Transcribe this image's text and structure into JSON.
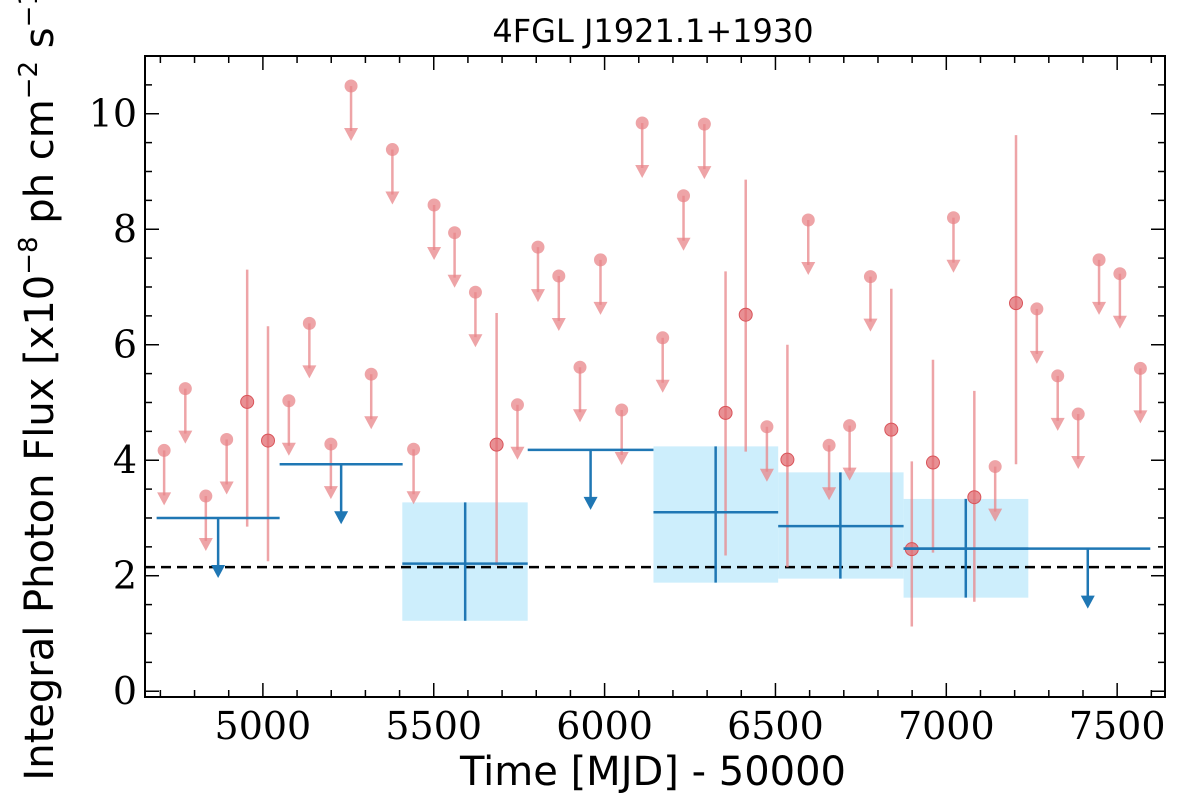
{
  "chart_data": {
    "type": "scatter",
    "title": "4FGL J1921.1+1930",
    "xlabel": "Time [MJD] - 50000",
    "ylabel": "Integral Photon Flux [x10",
    "ylabel_exp1": "−8",
    "ylabel_mid": " ph cm",
    "ylabel_exp2": "−2",
    "ylabel_mid2": " s",
    "ylabel_exp3": "−1",
    "ylabel_end": "]",
    "xlim": [
      4655,
      7640
    ],
    "ylim": [
      -0.1,
      11.0
    ],
    "x_ticks": [
      5000,
      5500,
      6000,
      6500,
      7000,
      7500
    ],
    "x_tick_labels": [
      "5000",
      "5500",
      "6000",
      "6500",
      "7000",
      "7500"
    ],
    "y_ticks": [
      0,
      2,
      4,
      6,
      8,
      10
    ],
    "y_tick_labels": [
      "0",
      "2",
      "4",
      "6",
      "8",
      "10"
    ],
    "baseline_flux": 2.15,
    "colors": {
      "short_bins": "#e8868a",
      "long_bins": "#1f77b4",
      "band_fill": "#cdeefc",
      "baseline": "#000000"
    },
    "short_bin_upper_limits": [
      {
        "x": 4711,
        "y": 4.17
      },
      {
        "x": 4773,
        "y": 5.24
      },
      {
        "x": 4833,
        "y": 3.38
      },
      {
        "x": 4894,
        "y": 4.36
      },
      {
        "x": 5076,
        "y": 5.03
      },
      {
        "x": 5136,
        "y": 6.37
      },
      {
        "x": 5199,
        "y": 4.28
      },
      {
        "x": 5258,
        "y": 10.48
      },
      {
        "x": 5317,
        "y": 5.49
      },
      {
        "x": 5379,
        "y": 9.38
      },
      {
        "x": 5441,
        "y": 4.19
      },
      {
        "x": 5501,
        "y": 8.42
      },
      {
        "x": 5561,
        "y": 7.94
      },
      {
        "x": 5622,
        "y": 6.91
      },
      {
        "x": 5745,
        "y": 4.96
      },
      {
        "x": 5805,
        "y": 7.69
      },
      {
        "x": 5866,
        "y": 7.19
      },
      {
        "x": 5928,
        "y": 5.61
      },
      {
        "x": 5988,
        "y": 7.47
      },
      {
        "x": 6050,
        "y": 4.87
      },
      {
        "x": 6110,
        "y": 9.84
      },
      {
        "x": 6170,
        "y": 6.12
      },
      {
        "x": 6231,
        "y": 8.58
      },
      {
        "x": 6292,
        "y": 9.82
      },
      {
        "x": 6475,
        "y": 4.58
      },
      {
        "x": 6596,
        "y": 8.16
      },
      {
        "x": 6657,
        "y": 4.26
      },
      {
        "x": 6717,
        "y": 4.6
      },
      {
        "x": 6778,
        "y": 7.18
      },
      {
        "x": 7021,
        "y": 8.2
      },
      {
        "x": 7143,
        "y": 3.89
      },
      {
        "x": 7265,
        "y": 6.62
      },
      {
        "x": 7326,
        "y": 5.46
      },
      {
        "x": 7386,
        "y": 4.8
      },
      {
        "x": 7447,
        "y": 7.47
      },
      {
        "x": 7508,
        "y": 7.23
      },
      {
        "x": 7568,
        "y": 5.59
      }
    ],
    "short_bin_detections": [
      {
        "x": 4954,
        "y": 5.01,
        "ylow": 2.85,
        "yhigh": 7.3
      },
      {
        "x": 5015,
        "y": 4.34,
        "ylow": 2.25,
        "yhigh": 6.32
      },
      {
        "x": 5684,
        "y": 4.27,
        "ylow": 2.18,
        "yhigh": 6.55
      },
      {
        "x": 6354,
        "y": 4.82,
        "ylow": 2.35,
        "yhigh": 7.27
      },
      {
        "x": 6413,
        "y": 6.52,
        "ylow": 4.15,
        "yhigh": 8.86
      },
      {
        "x": 6535,
        "y": 4.01,
        "ylow": 2.15,
        "yhigh": 6.0
      },
      {
        "x": 6839,
        "y": 4.53,
        "ylow": 2.15,
        "yhigh": 6.97
      },
      {
        "x": 6899,
        "y": 2.46,
        "ylow": 1.12,
        "yhigh": 3.98
      },
      {
        "x": 6961,
        "y": 3.96,
        "ylow": 2.4,
        "yhigh": 5.74
      },
      {
        "x": 7082,
        "y": 3.36,
        "ylow": 1.55,
        "yhigh": 5.2
      },
      {
        "x": 7204,
        "y": 6.72,
        "ylow": 3.93,
        "yhigh": 9.63
      }
    ],
    "long_bin_upper_limits": [
      {
        "x0": 4689,
        "x1": 5049,
        "y": 3.0,
        "x_arrow": 4869
      },
      {
        "x0": 5049,
        "x1": 5409,
        "y": 3.93,
        "x_arrow": 5229
      },
      {
        "x0": 5775,
        "x1": 6143,
        "y": 4.18,
        "x_arrow": 5959
      },
      {
        "x0": 6875,
        "x1": 7597,
        "y": 2.47,
        "x_arrow": 7414
      }
    ],
    "long_bin_detections": [
      {
        "x0": 5408,
        "x1": 5775,
        "xc": 5592,
        "y": 2.21,
        "ylow": 1.22,
        "yhigh": 3.27
      },
      {
        "x0": 6143,
        "x1": 6508,
        "xc": 6325,
        "y": 3.1,
        "ylow": 1.88,
        "yhigh": 4.24
      },
      {
        "x0": 6508,
        "x1": 6875,
        "xc": 6690,
        "y": 2.86,
        "ylow": 1.95,
        "yhigh": 3.79
      },
      {
        "x0": 6875,
        "x1": 7240,
        "xc": 7057,
        "y": 2.47,
        "ylow": 1.62,
        "yhigh": 3.33
      }
    ]
  }
}
